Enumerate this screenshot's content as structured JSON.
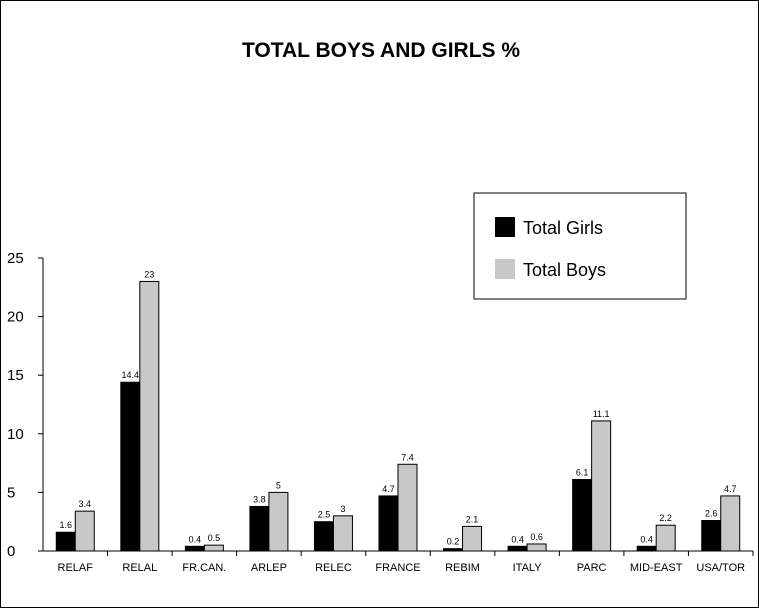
{
  "chart_data": {
    "type": "bar",
    "title": "TOTAL BOYS AND GIRLS %",
    "xlabel": "",
    "ylabel": "",
    "ylim": [
      0,
      25
    ],
    "yticks": [
      0,
      5,
      10,
      15,
      20,
      25
    ],
    "grid": false,
    "legend_position": "top-right",
    "categories": [
      "RELAF",
      "RELAL",
      "FR.CAN.",
      "ARLEP",
      "RELEC",
      "FRANCE",
      "REBIM",
      "ITALY",
      "PARC",
      "MID-EAST",
      "USA/TOR"
    ],
    "series": [
      {
        "name": "Total Girls",
        "color": "#000000",
        "values": [
          1.6,
          14.4,
          0.4,
          3.8,
          2.5,
          4.7,
          0.2,
          0.4,
          6.1,
          0.4,
          2.6
        ]
      },
      {
        "name": "Total Boys",
        "color": "#c8c8c8",
        "values": [
          3.4,
          23,
          0.5,
          5,
          3,
          7.4,
          2.1,
          0.6,
          11.1,
          2.2,
          4.7
        ]
      }
    ]
  }
}
